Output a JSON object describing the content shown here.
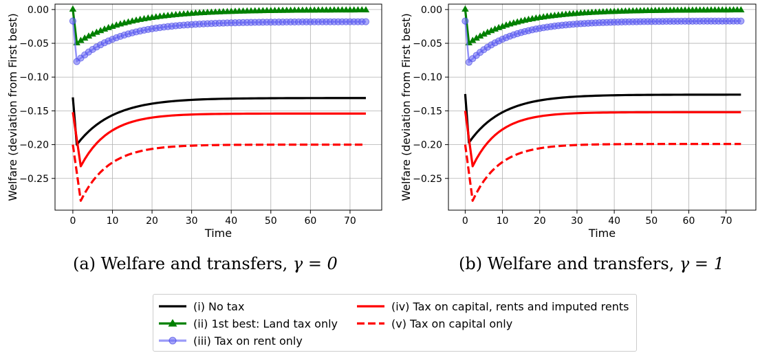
{
  "captions": {
    "a": {
      "label": "(a) Welfare and transfers, ",
      "gamma": "γ = 0"
    },
    "b": {
      "label": "(b) Welfare and transfers, ",
      "gamma": "γ = 1"
    }
  },
  "legend": [
    {
      "label": "(i) No tax",
      "color": "#000000",
      "style": "solid",
      "marker": "none"
    },
    {
      "label": "(ii) 1st best: Land tax only",
      "color": "#008000",
      "style": "solid",
      "marker": "triangle"
    },
    {
      "label": "(iii) Tax on rent only",
      "color": "#6f6ff5",
      "style": "solid",
      "marker": "circle"
    },
    {
      "label": "(iv) Tax on capital, rents and imputed rents",
      "color": "#ff0000",
      "style": "solid",
      "marker": "none"
    },
    {
      "label": "(v) Tax on capital only",
      "color": "#ff0000",
      "style": "dashed",
      "marker": "none"
    }
  ],
  "chart_data": [
    {
      "type": "line",
      "title": "",
      "xlabel": "Time",
      "ylabel": "Welfare (deviation from First best)",
      "xlim": [
        -4.5,
        78
      ],
      "ylim": [
        -0.297,
        0.008
      ],
      "xticks": [
        0,
        10,
        20,
        30,
        40,
        50,
        60,
        70
      ],
      "yticks": [
        0.0,
        -0.05,
        -0.1,
        -0.15,
        -0.2,
        -0.25
      ],
      "ytick_labels": [
        "0.00",
        "−0.05",
        "−0.10",
        "−0.15",
        "−0.20",
        "−0.25"
      ],
      "grid": true,
      "t_max": 74,
      "series": [
        {
          "name": "(i) No tax",
          "start": -0.13,
          "trough": -0.2,
          "trough_t": 1,
          "end": -0.131,
          "tau": 9
        },
        {
          "name": "(ii) 1st best: Land tax only",
          "start": 0.0,
          "trough": -0.05,
          "trough_t": 1,
          "end": -0.001,
          "tau": 13
        },
        {
          "name": "(iii) Tax on rent only",
          "start": -0.017,
          "trough": -0.077,
          "trough_t": 1,
          "end": -0.018,
          "tau": 11
        },
        {
          "name": "(iv) Tax on capital, rents and imputed rents",
          "start": -0.152,
          "trough": -0.232,
          "trough_t": 2,
          "end": -0.154,
          "tau": 7
        },
        {
          "name": "(v) Tax on capital only",
          "start": -0.2,
          "trough": -0.283,
          "trough_t": 2,
          "end": -0.2,
          "tau": 7
        }
      ]
    },
    {
      "type": "line",
      "title": "",
      "xlabel": "Time",
      "ylabel": "Welfare (deviation from First best)",
      "xlim": [
        -4.5,
        78
      ],
      "ylim": [
        -0.297,
        0.008
      ],
      "xticks": [
        0,
        10,
        20,
        30,
        40,
        50,
        60,
        70
      ],
      "yticks": [
        0.0,
        -0.05,
        -0.1,
        -0.15,
        -0.2,
        -0.25
      ],
      "ytick_labels": [
        "0.00",
        "−0.05",
        "−0.10",
        "−0.15",
        "−0.20",
        "−0.25"
      ],
      "grid": true,
      "t_max": 74,
      "series": [
        {
          "name": "(i) No tax",
          "start": -0.125,
          "trough": -0.197,
          "trough_t": 1,
          "end": -0.126,
          "tau": 9
        },
        {
          "name": "(ii) 1st best: Land tax only",
          "start": 0.0,
          "trough": -0.05,
          "trough_t": 1,
          "end": -0.001,
          "tau": 13
        },
        {
          "name": "(iii) Tax on rent only",
          "start": -0.017,
          "trough": -0.078,
          "trough_t": 1,
          "end": -0.017,
          "tau": 11
        },
        {
          "name": "(iv) Tax on capital, rents and imputed rents",
          "start": -0.15,
          "trough": -0.232,
          "trough_t": 2,
          "end": -0.152,
          "tau": 7
        },
        {
          "name": "(v) Tax on capital only",
          "start": -0.2,
          "trough": -0.283,
          "trough_t": 2,
          "end": -0.199,
          "tau": 7
        }
      ]
    }
  ]
}
